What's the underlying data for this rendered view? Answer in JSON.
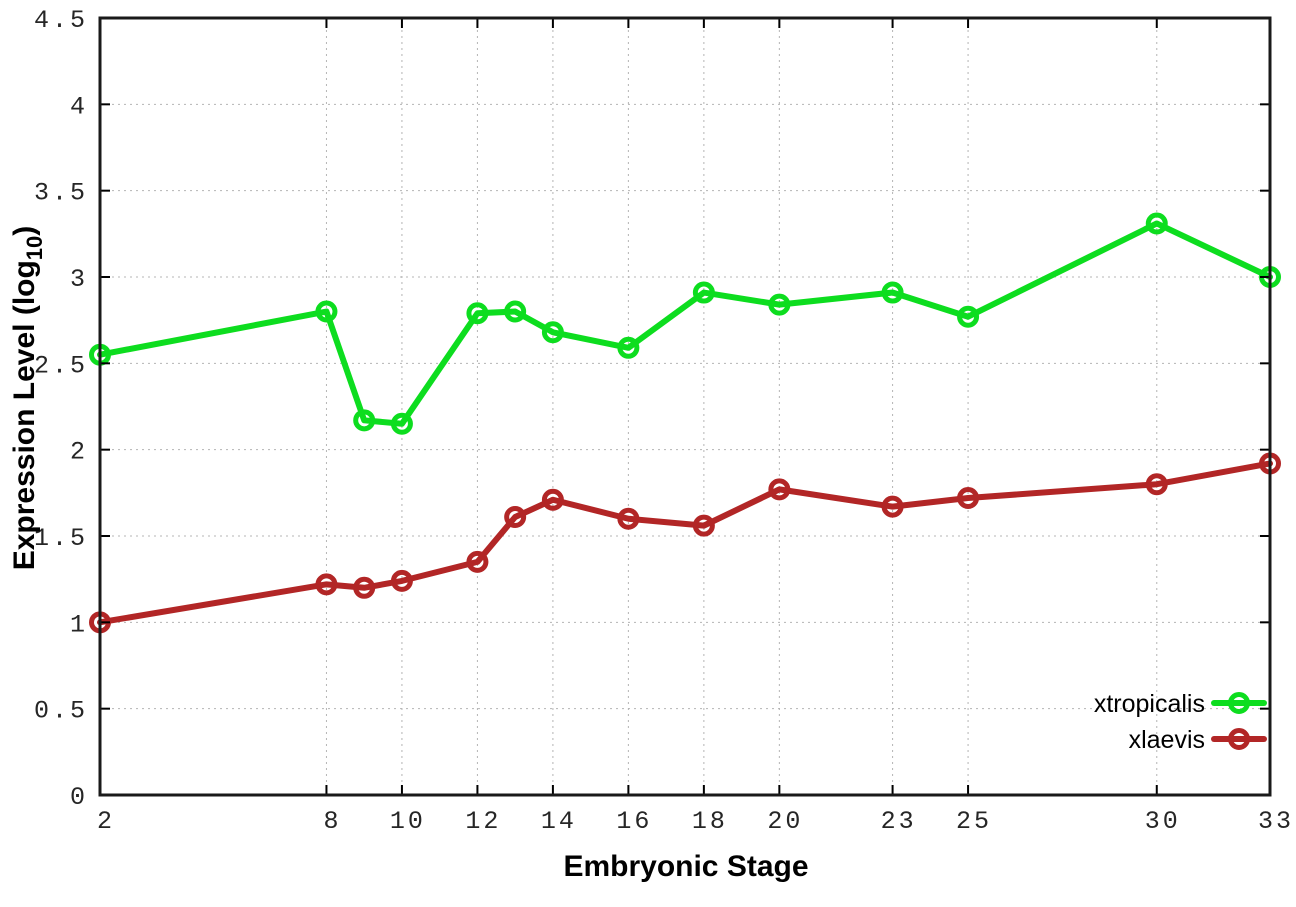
{
  "figure": {
    "background": "#ffffff",
    "border_color": "#1a1a1a",
    "grid_color": "#b4b4b4",
    "tick_color": "#000000",
    "tick_label_color": "#262626"
  },
  "chart_data": {
    "type": "line",
    "title": "",
    "xlabel": "Embryonic Stage",
    "ylabel": {
      "prefix": "Expression Level (log",
      "sub": "10",
      "suffix": ")"
    },
    "xlim": [
      2,
      33
    ],
    "ylim": [
      0,
      4.5
    ],
    "x_ticks": [
      2,
      8,
      10,
      12,
      14,
      16,
      18,
      20,
      23,
      25,
      30,
      33
    ],
    "y_ticks": [
      0,
      0.5,
      1,
      1.5,
      2,
      2.5,
      3,
      3.5,
      4,
      4.5
    ],
    "grid": true,
    "legend_position": "bottom-right",
    "x": [
      2,
      8,
      9,
      10,
      12,
      13,
      14,
      16,
      18,
      20,
      23,
      25,
      30,
      33
    ],
    "series": [
      {
        "name": "xtropicalis",
        "color": "#0ddd1f",
        "marker": "open-circle",
        "values": [
          2.55,
          2.8,
          2.17,
          2.15,
          2.79,
          2.8,
          2.68,
          2.59,
          2.91,
          2.84,
          2.91,
          2.77,
          3.31,
          3.0
        ]
      },
      {
        "name": "xlaevis",
        "color": "#b22626",
        "marker": "open-circle",
        "values": [
          1.0,
          1.22,
          1.2,
          1.24,
          1.35,
          1.61,
          1.71,
          1.6,
          1.56,
          1.77,
          1.67,
          1.72,
          1.8,
          1.92
        ]
      }
    ]
  }
}
